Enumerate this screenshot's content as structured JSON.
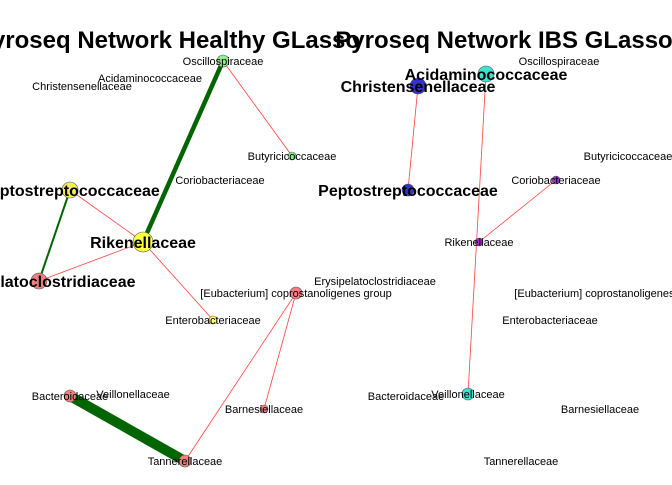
{
  "panels": [
    {
      "title": "Pyroseq Network Healthy GLasso",
      "nodes": [
        {
          "id": "oscillo",
          "label": "Oscillospiraceae",
          "color": "#90ee90",
          "size": "small"
        },
        {
          "id": "acidamino",
          "label": "Acidaminococcaceae",
          "color": null,
          "size": "none"
        },
        {
          "id": "christ",
          "label": "Christensenellaceae",
          "color": null,
          "size": "none"
        },
        {
          "id": "butyri",
          "label": "Butyricicoccaceae",
          "color": "#90ee90",
          "size": "tiny"
        },
        {
          "id": "corio",
          "label": "Coriobacteriaceae",
          "color": null,
          "size": "none"
        },
        {
          "id": "peptostrep",
          "label": "Peptostreptococcaceae",
          "color": "#eeee55",
          "size": "medium",
          "bold": true
        },
        {
          "id": "rikenell",
          "label": "Rikenellaceae",
          "color": "#ffff44",
          "size": "large",
          "bold": true
        },
        {
          "id": "erysip",
          "label": "Erysipelatoclostridiaceae",
          "color": "#f08080",
          "size": "medium",
          "bold": true
        },
        {
          "id": "eubact",
          "label": "[Eubacterium] coprostanoligenes group",
          "color": "#f08080",
          "size": "small"
        },
        {
          "id": "entero",
          "label": "Enterobacteriaceae",
          "color": "#ffff66",
          "size": "tiny"
        },
        {
          "id": "bactero",
          "label": "Bacteroidaceae",
          "color": "#f08080",
          "size": "small"
        },
        {
          "id": "veillon",
          "label": "Veillonellaceae",
          "color": null,
          "size": "none"
        },
        {
          "id": "barnes",
          "label": "Barnesiellaceae",
          "color": "#f08080",
          "size": "tiny"
        },
        {
          "id": "tanner",
          "label": "Tannerellaceae",
          "color": "#f08080",
          "size": "small"
        }
      ],
      "edges": [
        {
          "from": "oscillo",
          "to": "rikenell",
          "sign": "positive",
          "weight": 0.45
        },
        {
          "from": "oscillo",
          "to": "butyri",
          "sign": "negative",
          "weight": 0.1
        },
        {
          "from": "peptostrep",
          "to": "erysip",
          "sign": "positive",
          "weight": 0.2
        },
        {
          "from": "peptostrep",
          "to": "rikenell",
          "sign": "negative",
          "weight": 0.1
        },
        {
          "from": "rikenell",
          "to": "erysip",
          "sign": "negative",
          "weight": 0.1
        },
        {
          "from": "rikenell",
          "to": "entero",
          "sign": "negative",
          "weight": 0.1
        },
        {
          "from": "bactero",
          "to": "tanner",
          "sign": "positive",
          "weight": 1.0
        },
        {
          "from": "eubact",
          "to": "tanner",
          "sign": "negative",
          "weight": 0.1
        },
        {
          "from": "eubact",
          "to": "barnes",
          "sign": "negative",
          "weight": 0.1
        }
      ]
    },
    {
      "title": "Pyroseq Network IBS GLasso",
      "nodes": [
        {
          "id": "oscillo",
          "label": "Oscillospiraceae",
          "color": null,
          "size": "none"
        },
        {
          "id": "acidamino",
          "label": "Acidaminococcaceae",
          "color": "#40e0d0",
          "size": "medium",
          "bold": true
        },
        {
          "id": "christ",
          "label": "Christensenellaceae",
          "color": "#3333cc",
          "size": "medium",
          "bold": true
        },
        {
          "id": "butyri",
          "label": "Butyricicoccaceae",
          "color": null,
          "size": "none"
        },
        {
          "id": "corio",
          "label": "Coriobacteriaceae",
          "color": "#9933cc",
          "size": "tiny"
        },
        {
          "id": "peptostrep",
          "label": "Peptostreptococcaceae",
          "color": "#3333cc",
          "size": "small",
          "bold": true
        },
        {
          "id": "rikenell",
          "label": "Rikenellaceae",
          "color": "#9933cc",
          "size": "tiny"
        },
        {
          "id": "erysip",
          "label": "Erysipelatoclostridiaceae",
          "color": null,
          "size": "none"
        },
        {
          "id": "eubact",
          "label": "[Eubacterium] coprostanoligenes group",
          "color": null,
          "size": "none"
        },
        {
          "id": "entero",
          "label": "Enterobacteriaceae",
          "color": null,
          "size": "none"
        },
        {
          "id": "bactero",
          "label": "Bacteroidaceae",
          "color": null,
          "size": "none"
        },
        {
          "id": "veillon",
          "label": "Veillonellaceae",
          "color": "#40e0d0",
          "size": "small"
        },
        {
          "id": "barnes",
          "label": "Barnesiellaceae",
          "color": null,
          "size": "none"
        },
        {
          "id": "tanner",
          "label": "Tannerellaceae",
          "color": null,
          "size": "none"
        }
      ],
      "edges": [
        {
          "from": "christ",
          "to": "peptostrep",
          "sign": "negative",
          "weight": 0.1
        },
        {
          "from": "acidamino",
          "to": "veillon",
          "sign": "negative",
          "weight": 0.1
        },
        {
          "from": "corio",
          "to": "rikenell",
          "sign": "negative",
          "weight": 0.1
        }
      ]
    }
  ],
  "colors": {
    "positive_edge": "#006400",
    "negative_edge": "#ff4040"
  }
}
